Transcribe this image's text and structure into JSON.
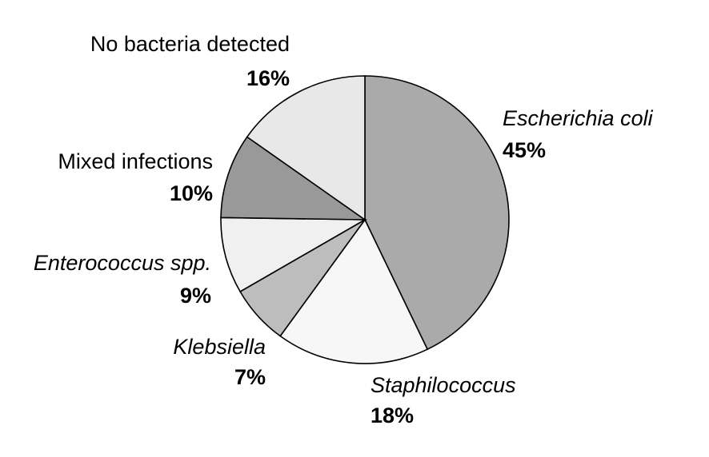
{
  "chart_data": {
    "type": "pie",
    "categories": [
      "Escherichia coli",
      "Staphilococcus",
      "Klebsiella",
      "Enterococcus spp.",
      "Mixed infections",
      "No bacteria detected"
    ],
    "values": [
      45,
      18,
      7,
      9,
      10,
      16
    ],
    "value_labels": [
      "45%",
      "18%",
      "7%",
      "9%",
      "10%",
      "16%"
    ],
    "colors": [
      "#aaaaaa",
      "#f7f7f7",
      "#bdbdbd",
      "#f0f0f0",
      "#999999",
      "#e8e8e8"
    ]
  }
}
